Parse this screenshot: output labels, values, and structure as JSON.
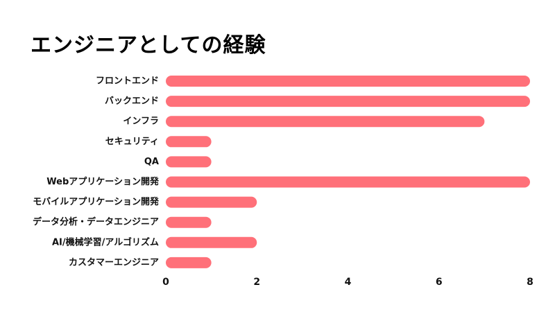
{
  "chart_data": {
    "type": "bar",
    "orientation": "horizontal",
    "title": "エンジニアとしての経験",
    "xlabel": "",
    "ylabel": "",
    "categories": [
      "フロントエンド",
      "バックエンド",
      "インフラ",
      "セキュリティ",
      "QA",
      "Webアプリケーション開発",
      "モバイルアプリケーション開発",
      "データ分析・データエンジニア",
      "AI/機械学習/アルゴリズム",
      "カスタマーエンジニア"
    ],
    "values": [
      8,
      8,
      7,
      1,
      1,
      8,
      2,
      1,
      2,
      1
    ],
    "xlim": [
      0,
      8
    ],
    "xticks": [
      "0",
      "2",
      "4",
      "6",
      "8"
    ],
    "grid": false,
    "legend": "none",
    "bar_color": "#FF7079"
  }
}
